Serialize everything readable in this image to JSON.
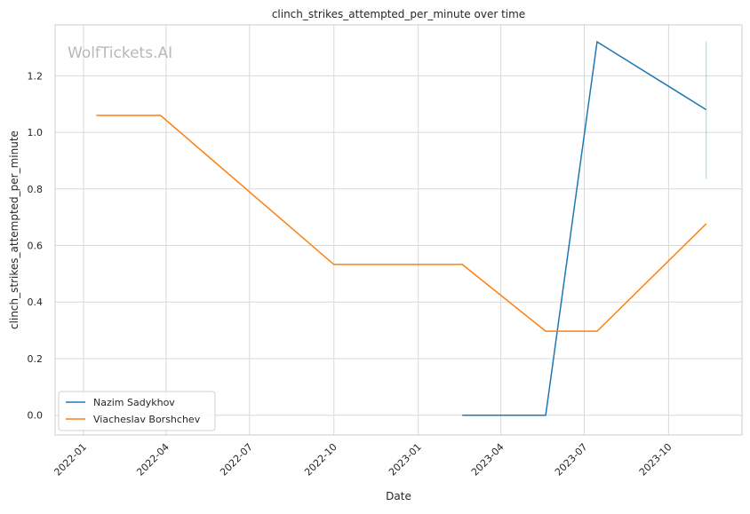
{
  "chart_data": {
    "type": "line",
    "title": "clinch_strikes_attempted_per_minute over time",
    "xlabel": "Date",
    "ylabel": "clinch_strikes_attempted_per_minute",
    "watermark": "WolfTickets.AI",
    "x_ticks": [
      "2022-01",
      "2022-04",
      "2022-07",
      "2022-10",
      "2023-01",
      "2023-04",
      "2023-07",
      "2023-10"
    ],
    "y_ticks": [
      "0.0",
      "0.2",
      "0.4",
      "0.6",
      "0.8",
      "1.0",
      "1.2"
    ],
    "ylim": [
      -0.07,
      1.38
    ],
    "xlim": [
      "2021-12-01",
      "2023-12-20"
    ],
    "grid": true,
    "legend_position": "lower-left",
    "series": [
      {
        "name": "Nazim Sadykhov",
        "color": "#1f77b4",
        "points": [
          {
            "x": "2023-02-18",
            "y": 0.0
          },
          {
            "x": "2023-05-20",
            "y": 0.0
          },
          {
            "x": "2023-07-15",
            "y": 1.32
          },
          {
            "x": "2023-11-11",
            "y": 1.08
          }
        ]
      },
      {
        "name": "Viacheslav Borshchev",
        "color": "#ff7f0e",
        "points": [
          {
            "x": "2022-01-15",
            "y": 1.06
          },
          {
            "x": "2022-03-26",
            "y": 1.06
          },
          {
            "x": "2022-10-01",
            "y": 0.533
          },
          {
            "x": "2023-02-18",
            "y": 0.533
          },
          {
            "x": "2023-05-20",
            "y": 0.297
          },
          {
            "x": "2023-07-15",
            "y": 0.297
          },
          {
            "x": "2023-11-11",
            "y": 0.677
          }
        ]
      }
    ],
    "error_bar": {
      "x": "2023-11-11",
      "y_low": 0.835,
      "y_high": 1.32,
      "color": "#7fb3a3"
    }
  }
}
